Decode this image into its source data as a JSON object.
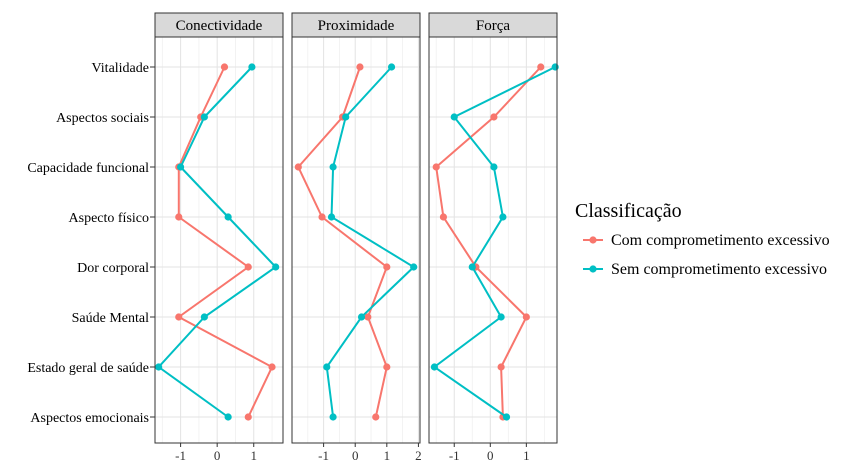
{
  "chart_data": {
    "type": "line",
    "categories": [
      "Vitalidade",
      "Aspectos sociais",
      "Capacidade funcional",
      "Aspecto físico",
      "Dor corporal",
      "Saúde Mental",
      "Estado geral de saúde",
      "Aspectos emocionais"
    ],
    "grid": true,
    "legend_position": "right",
    "colors": {
      "Com comprometimento excessivo": "#F8766D",
      "Sem comprometimento excessivo": "#00BFC4"
    },
    "panels": [
      {
        "title": "Conectividade",
        "xlim": [
          -1.7,
          1.8
        ],
        "xticks": [
          -1,
          0,
          1
        ],
        "tick_labels": [
          "-1",
          "0",
          "1"
        ],
        "series": [
          {
            "name": "Com comprometimento excessivo",
            "values": [
              0.2,
              -0.45,
              -1.05,
              -1.05,
              0.85,
              -1.05,
              1.5,
              0.85
            ]
          },
          {
            "name": "Sem comprometimento excessivo",
            "values": [
              0.95,
              -0.35,
              -1.0,
              0.3,
              1.6,
              -0.35,
              -1.6,
              0.3
            ]
          }
        ]
      },
      {
        "title": "Proximidade",
        "xlim": [
          -2.0,
          2.05
        ],
        "xticks": [
          -1,
          0,
          1,
          2
        ],
        "tick_labels": [
          "-1",
          "0",
          "1",
          "2"
        ],
        "series": [
          {
            "name": "Com comprometimento excessivo",
            "values": [
              0.15,
              -0.4,
              -1.8,
              -1.05,
              1.0,
              0.4,
              1.0,
              0.65
            ]
          },
          {
            "name": "Sem comprometimento excessivo",
            "values": [
              1.15,
              -0.3,
              -0.7,
              -0.75,
              1.85,
              0.2,
              -0.9,
              -0.7
            ]
          }
        ]
      },
      {
        "title": "Força",
        "xlim": [
          -1.7,
          1.85
        ],
        "xticks": [
          -1,
          0,
          1
        ],
        "tick_labels": [
          "-1",
          "0",
          "1"
        ],
        "series": [
          {
            "name": "Com comprometimento excessivo",
            "values": [
              1.4,
              0.1,
              -1.5,
              -1.3,
              -0.4,
              1.0,
              0.3,
              0.35
            ]
          },
          {
            "name": "Sem comprometimento excessivo",
            "values": [
              1.8,
              -1.0,
              0.1,
              0.35,
              -0.5,
              0.3,
              -1.55,
              0.45
            ]
          }
        ]
      }
    ],
    "legend": {
      "title": "Classificação",
      "entries": [
        "Com comprometimento excessivo",
        "Sem comprometimento excessivo"
      ]
    }
  }
}
